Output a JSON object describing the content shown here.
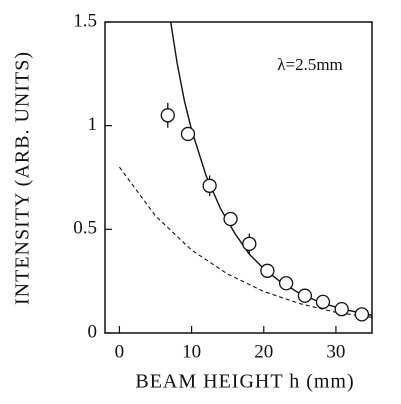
{
  "chart_data": {
    "type": "scatter",
    "x_label": "BEAM HEIGHT h (mm)",
    "y_label": "INTENSITY (ARB. UNITS)",
    "annotation": "λ=2.5mm",
    "xlim": [
      -2,
      35
    ],
    "xticks": [
      0,
      10,
      20,
      30
    ],
    "ylim": [
      0,
      1.5
    ],
    "yticks": [
      0,
      0.5,
      1,
      1.5
    ],
    "points": {
      "color": "#111",
      "x": [
        6.7,
        9.5,
        12.5,
        15.4,
        18,
        20.5,
        23.1,
        25.7,
        28.2,
        30.8,
        33.6
      ],
      "values": [
        1.05,
        0.96,
        0.71,
        0.55,
        0.43,
        0.3,
        0.24,
        0.18,
        0.15,
        0.115,
        0.09
      ],
      "errors": [
        0.06,
        0.02,
        0.05,
        0.02,
        0.05,
        0.03,
        0.02,
        0.02,
        0.02,
        0.02,
        0.02
      ]
    },
    "curves": [
      {
        "style": "solid",
        "color": "#111",
        "x": [
          7.1,
          8,
          9,
          10,
          12,
          14,
          16,
          18,
          20,
          22,
          25,
          28,
          31,
          35
        ],
        "values": [
          1.5,
          1.3,
          1.12,
          0.98,
          0.76,
          0.6,
          0.48,
          0.38,
          0.31,
          0.255,
          0.19,
          0.145,
          0.115,
          0.085
        ]
      },
      {
        "style": "dashed",
        "color": "#111",
        "x": [
          0,
          5,
          10,
          15,
          20,
          25,
          30,
          35
        ],
        "values": [
          0.8,
          0.565,
          0.4,
          0.284,
          0.2,
          0.142,
          0.1,
          0.075
        ]
      }
    ]
  }
}
